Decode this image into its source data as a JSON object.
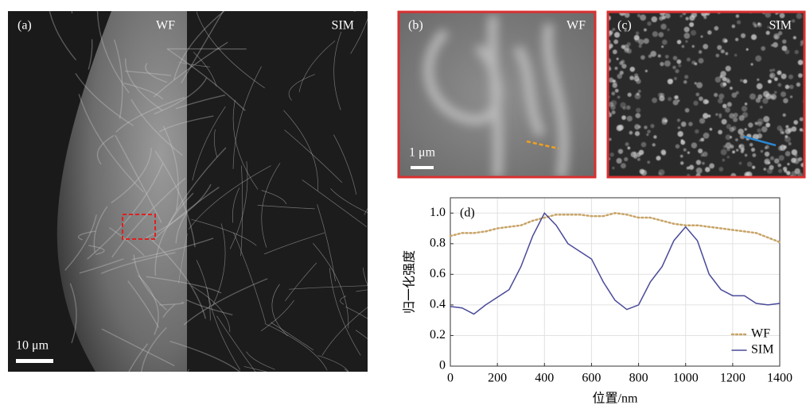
{
  "panels": {
    "a": {
      "label": "(a)",
      "left_label": "WF",
      "right_label": "SIM",
      "scale_bar": "10 μm"
    },
    "b": {
      "label": "(b)",
      "corner_label": "WF",
      "scale_bar": "1 μm"
    },
    "c": {
      "label": "(c)",
      "corner_label": "SIM"
    }
  },
  "chart_data": {
    "type": "line",
    "panel_label": "(d)",
    "x_label": "位置/nm",
    "y_label": "归一化强度",
    "x": [
      0,
      50,
      100,
      150,
      200,
      250,
      300,
      350,
      400,
      450,
      500,
      550,
      600,
      650,
      700,
      750,
      800,
      850,
      900,
      950,
      1000,
      1050,
      1100,
      1150,
      1200,
      1250,
      1300,
      1350,
      1400
    ],
    "series": [
      {
        "name": "WF",
        "color": "#c8a468",
        "dash": "dotted",
        "values": [
          0.85,
          0.87,
          0.87,
          0.88,
          0.9,
          0.91,
          0.92,
          0.95,
          0.97,
          0.99,
          0.99,
          0.99,
          0.98,
          0.98,
          1,
          0.99,
          0.97,
          0.97,
          0.95,
          0.93,
          0.92,
          0.92,
          0.91,
          0.9,
          0.89,
          0.88,
          0.87,
          0.84,
          0.81
        ]
      },
      {
        "name": "SIM",
        "color": "#4a4a9a",
        "dash": "solid",
        "values": [
          0.39,
          0.38,
          0.34,
          0.4,
          0.45,
          0.5,
          0.65,
          0.85,
          1,
          0.92,
          0.8,
          0.75,
          0.7,
          0.55,
          0.43,
          0.37,
          0.4,
          0.55,
          0.65,
          0.82,
          0.91,
          0.82,
          0.6,
          0.5,
          0.46,
          0.46,
          0.41,
          0.4,
          0.41
        ]
      }
    ],
    "xlim": [
      0,
      1400
    ],
    "xticks": [
      0,
      200,
      400,
      600,
      800,
      1000,
      1200,
      1400
    ],
    "ylim": [
      0,
      1.1
    ],
    "yticks": [
      0,
      0.2,
      0.4,
      0.6,
      0.8,
      {
        "value": 1,
        "label": "1.0"
      }
    ],
    "grid": true,
    "legend": "lower right"
  }
}
